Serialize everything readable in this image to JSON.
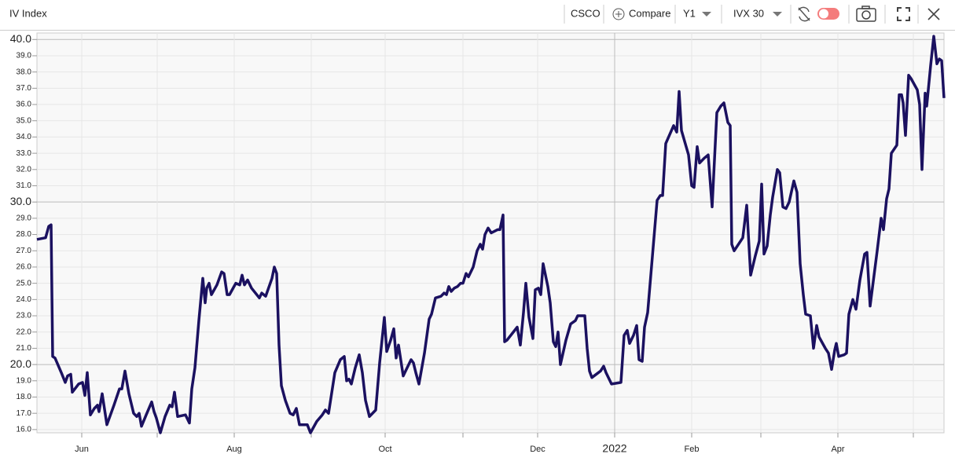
{
  "toolbar": {
    "title": "IV Index",
    "symbol": "CSCO",
    "compare": "Compare",
    "period": "Y1",
    "measure": "IVX 30"
  },
  "chart_data": {
    "type": "line",
    "color": "#1b1160",
    "x": [
      0,
      11,
      15,
      18,
      20,
      23,
      31,
      36,
      39,
      43,
      45,
      53,
      58,
      61,
      64,
      68,
      73,
      77,
      79,
      83,
      89,
      98,
      105,
      108,
      112,
      117,
      123,
      127,
      130,
      133,
      139,
      146,
      149,
      152,
      157,
      163,
      169,
      172,
      175,
      179,
      189,
      194,
      197,
      201,
      206,
      211,
      214,
      216,
      219,
      222,
      229,
      235,
      238,
      242,
      245,
      253,
      258,
      261,
      264,
      268,
      273,
      283,
      286,
      291,
      299,
      302,
      305,
      308,
      311,
      316,
      322,
      326,
      330,
      334,
      341,
      344,
      348,
      356,
      363,
      367,
      371,
      379,
      386,
      391,
      394,
      397,
      400,
      405,
      410,
      414,
      418,
      423,
      431,
      436,
      442,
      445,
      450,
      454,
      457,
      460,
      466,
      470,
      476,
      479,
      482,
      486,
      493,
      499,
      502,
      507,
      514,
      518,
      521,
      524,
      527,
      531,
      535,
      539,
      542,
      546,
      549,
      555,
      560,
      564,
      567,
      570,
      574,
      578,
      586,
      589,
      593,
      595,
      598,
      611,
      615,
      619,
      622,
      626,
      631,
      634,
      638,
      641,
      644,
      650,
      653,
      657,
      660,
      663,
      666,
      673,
      679,
      685,
      688,
      697,
      700,
      703,
      706,
      717,
      721,
      724,
      731,
      743,
      747,
      751,
      754,
      759,
      763,
      766,
      770,
      773,
      777,
      789,
      793,
      796,
      800,
      810,
      814,
      817,
      820,
      829,
      833,
      836,
      840,
      843,
      849,
      854,
      859,
      865,
      870,
      874,
      879,
      882,
      884,
      887,
      898,
      903,
      908,
      914,
      919,
      922,
      925,
      929,
      933,
      936,
      942,
      945,
      949,
      953,
      957,
      963,
      967,
      971,
      975,
      978,
      984,
      988,
      992,
      995,
      1003,
      1007,
      1011,
      1015,
      1017,
      1020,
      1027,
      1030,
      1033,
      1038,
      1042,
      1047,
      1053,
      1056,
      1060,
      1069,
      1074,
      1077,
      1081,
      1084,
      1087,
      1094,
      1097,
      1100,
      1102,
      1105,
      1109,
      1112,
      1120,
      1123,
      1126,
      1130,
      1132,
      1137,
      1141,
      1145,
      1148,
      1151,
      1154
    ],
    "values": [
      27.7,
      27.8,
      28.5,
      28.6,
      20.5,
      20.4,
      19.5,
      18.9,
      19.3,
      19.4,
      18.3,
      18.8,
      18.9,
      18.1,
      19.5,
      16.9,
      17.3,
      17.5,
      17.1,
      18.2,
      16.3,
      17.5,
      18.5,
      18.5,
      19.6,
      18.2,
      17.0,
      16.8,
      17.0,
      16.2,
      16.9,
      17.7,
      17.1,
      16.7,
      15.8,
      16.8,
      17.5,
      17.4,
      18.3,
      16.8,
      16.9,
      16.4,
      18.5,
      19.8,
      22.7,
      25.3,
      23.8,
      24.7,
      25.0,
      24.3,
      24.9,
      25.7,
      25.6,
      24.3,
      24.3,
      25.0,
      24.9,
      25.5,
      24.9,
      25.2,
      24.7,
      24.1,
      24.4,
      24.2,
      25.3,
      26.0,
      25.6,
      21.2,
      18.7,
      17.8,
      17.0,
      16.9,
      17.3,
      16.3,
      16.3,
      16.3,
      15.8,
      16.5,
      16.9,
      17.2,
      17.0,
      19.5,
      20.3,
      20.5,
      19.0,
      19.1,
      18.8,
      19.8,
      20.6,
      19.5,
      17.8,
      16.8,
      17.2,
      20.1,
      22.9,
      20.8,
      21.5,
      22.2,
      20.4,
      21.2,
      19.3,
      19.7,
      20.3,
      20.1,
      19.5,
      18.8,
      20.7,
      22.8,
      23.1,
      24.1,
      24.2,
      24.4,
      24.3,
      24.8,
      24.5,
      24.7,
      24.8,
      25.0,
      25.0,
      25.6,
      25.4,
      26.0,
      27.0,
      27.4,
      27.1,
      28.0,
      28.4,
      28.1,
      28.3,
      28.3,
      29.2,
      21.4,
      21.5,
      22.3,
      21.2,
      23.2,
      25.0,
      22.9,
      21.6,
      24.6,
      24.7,
      24.3,
      26.2,
      24.8,
      23.8,
      21.4,
      21.1,
      22.0,
      20.0,
      21.5,
      22.5,
      22.7,
      23.0,
      23.0,
      21.0,
      19.6,
      19.2,
      19.6,
      19.9,
      19.5,
      18.8,
      18.9,
      21.8,
      22.1,
      21.3,
      21.8,
      22.4,
      20.3,
      20.2,
      22.3,
      23.2,
      30.1,
      30.4,
      30.4,
      33.6,
      34.7,
      34.3,
      36.8,
      34.4,
      32.9,
      31.0,
      30.9,
      33.4,
      32.4,
      32.7,
      32.9,
      29.7,
      35.5,
      35.9,
      36.1,
      34.9,
      34.7,
      27.4,
      27.0,
      27.8,
      29.8,
      25.5,
      26.7,
      27.6,
      31.1,
      26.8,
      27.3,
      29.2,
      30.3,
      32.0,
      31.8,
      29.7,
      29.6,
      30.0,
      31.3,
      30.6,
      26.2,
      24.3,
      23.1,
      23.0,
      21.0,
      22.4,
      21.7,
      21.0,
      20.7,
      19.7,
      20.9,
      21.3,
      20.5,
      20.6,
      20.7,
      23.1,
      24.0,
      23.4,
      25.2,
      26.8,
      26.9,
      23.6,
      27.0,
      29.0,
      28.3,
      30.2,
      30.8,
      33.0,
      33.5,
      36.6,
      36.6,
      36.1,
      34.1,
      37.8,
      37.6,
      36.9,
      36.0,
      32.0,
      36.7,
      35.9,
      38.4,
      40.2,
      38.5,
      38.8,
      38.7,
      36.4
    ],
    "xlim": [
      0,
      1154
    ],
    "xticks": [
      {
        "value": 57,
        "label": "Jun"
      },
      {
        "value": 153,
        "label": null
      },
      {
        "value": 251,
        "label": "Aug"
      },
      {
        "value": 349,
        "label": null
      },
      {
        "value": 443,
        "label": "Oct"
      },
      {
        "value": 542,
        "label": null
      },
      {
        "value": 637,
        "label": "Dec"
      },
      {
        "value": 735,
        "label": "2022"
      },
      {
        "value": 833,
        "label": "Feb"
      },
      {
        "value": 921,
        "label": null
      },
      {
        "value": 1019,
        "label": "Apr"
      },
      {
        "value": 1115,
        "label": null
      }
    ],
    "ylim": [
      15.8,
      40.4
    ],
    "yticks": [
      {
        "value": 16,
        "label": "16.0"
      },
      {
        "value": 17,
        "label": "17.0"
      },
      {
        "value": 18,
        "label": "18.0"
      },
      {
        "value": 19,
        "label": "19.0"
      },
      {
        "value": 20,
        "label": "20.0"
      },
      {
        "value": 21,
        "label": "21.0"
      },
      {
        "value": 22,
        "label": "22.0"
      },
      {
        "value": 23,
        "label": "23.0"
      },
      {
        "value": 24,
        "label": "24.0"
      },
      {
        "value": 25,
        "label": "25.0"
      },
      {
        "value": 26,
        "label": "26.0"
      },
      {
        "value": 27,
        "label": "27.0"
      },
      {
        "value": 28,
        "label": "28.0"
      },
      {
        "value": 29,
        "label": "29.0"
      },
      {
        "value": 30,
        "label": "30.0"
      },
      {
        "value": 31,
        "label": "31.0"
      },
      {
        "value": 32,
        "label": "32.0"
      },
      {
        "value": 33,
        "label": "33.0"
      },
      {
        "value": 34,
        "label": "34.0"
      },
      {
        "value": 35,
        "label": "35.0"
      },
      {
        "value": 36,
        "label": "36.0"
      },
      {
        "value": 37,
        "label": "37.0"
      },
      {
        "value": 38,
        "label": "38.0"
      },
      {
        "value": 39,
        "label": "39.0"
      },
      {
        "value": 40,
        "label": "40.0"
      }
    ],
    "grid": true
  }
}
